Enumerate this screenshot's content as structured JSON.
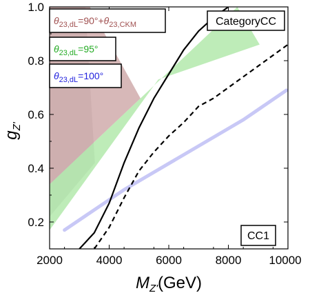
{
  "chart_data": {
    "type": "area",
    "xlabel": "M",
    "xlabel_sub": "Z'",
    "xlabel_unit": "(GeV)",
    "ylabel": "g",
    "ylabel_sub": "Z'",
    "xlim": [
      2000,
      10000
    ],
    "ylim": [
      0.1,
      1.0
    ],
    "xticks": [
      "2000",
      "4000",
      "6000",
      "8000",
      "10000"
    ],
    "yticks": [
      "0.2",
      "0.4",
      "0.6",
      "0.8",
      "1.0"
    ],
    "xtick_values": [
      2000,
      4000,
      6000,
      8000,
      10000
    ],
    "ytick_values": [
      0.2,
      0.4,
      0.6,
      0.8,
      1.0
    ],
    "category_label": "CategoryCC",
    "case_label": "CC1",
    "colors": {
      "gray_region": "#d9d9d9",
      "red_band": "#c9a0a0",
      "green_band": "#a8e6a0",
      "blue_band": "#9a9aee",
      "red_text": "#a05050",
      "green_text": "#22aa22",
      "blue_text": "#2222dd"
    },
    "legend": [
      {
        "theta": "θ",
        "sub": "23,dL",
        "text": "=90°+",
        "theta2": "θ",
        "sub2": "23,CKM",
        "color": "#a05050"
      },
      {
        "theta": "θ",
        "sub": "23,dL",
        "text": "=95°",
        "color": "#22aa22"
      },
      {
        "theta": "θ",
        "sub": "23,dL",
        "text": "=100°",
        "color": "#2222dd"
      }
    ],
    "series": [
      {
        "name": "gray_excluded",
        "x": [
          2000,
          3200,
          3520,
          2000
        ],
        "y": [
          1.0,
          1.0,
          0.42,
          0.22
        ]
      },
      {
        "name": "red_band",
        "upper": {
          "x": [
            2600,
            3200
          ],
          "y": [
            1.0,
            1.0
          ]
        },
        "polygon_x": [
          2000,
          3350,
          5050,
          2000
        ],
        "polygon_y": [
          1.0,
          1.0,
          0.66,
          0.34
        ]
      },
      {
        "name": "green_band",
        "polygon_x": [
          2000,
          5050,
          8300,
          9050,
          5650,
          2000
        ],
        "polygon_y": [
          0.34,
          0.66,
          1.0,
          0.86,
          0.73,
          0.17
        ]
      },
      {
        "name": "blue_band",
        "x": [
          2500,
          4500,
          6500,
          8500,
          9950
        ],
        "y": [
          0.17,
          0.32,
          0.45,
          0.58,
          0.69
        ]
      },
      {
        "name": "solid_boundary",
        "x": [
          3000,
          3500,
          4000,
          4500,
          5000,
          5500,
          6000,
          6500,
          7000,
          7500,
          8000
        ],
        "y": [
          0.1,
          0.16,
          0.27,
          0.42,
          0.55,
          0.66,
          0.75,
          0.84,
          0.91,
          0.96,
          1.0
        ]
      },
      {
        "name": "dashed_boundary",
        "x": [
          3500,
          4000,
          4500,
          5000,
          5500,
          6000,
          6500,
          7000,
          7500,
          8000,
          8500,
          9000,
          9500,
          10000
        ],
        "y": [
          0.1,
          0.18,
          0.29,
          0.39,
          0.46,
          0.52,
          0.57,
          0.63,
          0.66,
          0.7,
          0.74,
          0.78,
          0.82,
          0.86
        ]
      }
    ]
  }
}
